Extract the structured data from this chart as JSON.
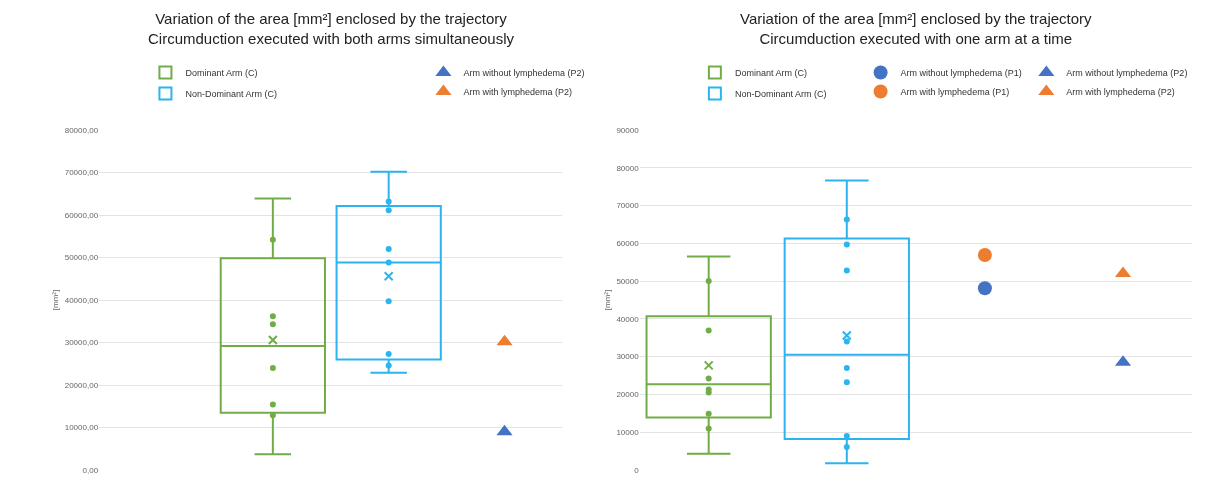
{
  "chart_data": [
    {
      "type": "box",
      "title": "Variation of the area [mm²] enclosed by the trajectory\nCircumduction executed with both arms simultaneously",
      "ylabel": "[mm²]",
      "categories": [
        null,
        null,
        null,
        null
      ],
      "ylim": [
        0,
        80000
      ],
      "yticks": [
        {
          "value": 0,
          "label": "0,00"
        },
        {
          "value": 10000,
          "label": "10000,00"
        },
        {
          "value": 20000,
          "label": "20000,00"
        },
        {
          "value": 30000,
          "label": "30000,00"
        },
        {
          "value": 40000,
          "label": "40000,00"
        },
        {
          "value": 50000,
          "label": "50000,00"
        },
        {
          "value": 60000,
          "label": "60000,00"
        },
        {
          "value": 70000,
          "label": "70000,00"
        },
        {
          "value": 80000,
          "label": "80000,00"
        }
      ],
      "grid": "y",
      "legend": "top",
      "tick_labels": "y",
      "series": [
        {
          "name": "Dominant Arm (C)",
          "color": "#70ad47",
          "boxes": [
            null,
            {
              "low": 3700,
              "q1": 13500,
              "median": 29200,
              "q3": 49800,
              "high": 63900,
              "mean": 30600,
              "outliers": [
                54200,
                36200,
                34300,
                24000,
                15400,
                12900
              ]
            },
            null,
            null
          ]
        },
        {
          "name": "Non-Dominant Arm (C)",
          "color": "#2bb5ee",
          "boxes": [
            null,
            null,
            {
              "low": 22900,
              "q1": 26000,
              "median": 48800,
              "q3": 62100,
              "high": 70200,
              "mean": 45600,
              "outliers": [
                63200,
                61100,
                52000,
                48800,
                39700,
                27300,
                24600
              ]
            },
            null
          ]
        },
        {
          "name": "Arm without lymphedema (P2)",
          "type": "scatter",
          "marker": "triangle",
          "color": "#4472c4",
          "values": [
            null,
            null,
            null,
            9000
          ]
        },
        {
          "name": "Arm with lymphedema (P2)",
          "type": "scatter",
          "marker": "triangle",
          "color": "#ed7d31",
          "values": [
            null,
            null,
            null,
            30200
          ]
        }
      ]
    },
    {
      "type": "box",
      "title": "Variation of the area [mm²] enclosed by the trajectory\nCircumduction executed with one arm at a time",
      "ylabel": "[mm²]",
      "categories": [
        null,
        null,
        null,
        null
      ],
      "ylim": [
        0,
        90000
      ],
      "yticks": [
        0,
        10000,
        20000,
        30000,
        40000,
        50000,
        60000,
        70000,
        80000,
        90000
      ],
      "grid": "y",
      "legend": "top",
      "tick_labels": "y",
      "series": [
        {
          "name": "Dominant Arm (C)",
          "color": "#70ad47",
          "boxes": [
            {
              "low": 4300,
              "q1": 13900,
              "median": 22700,
              "q3": 40700,
              "high": 56500,
              "mean": 27700,
              "outliers": [
                50000,
                36900,
                24200,
                21300,
                20500,
                14900,
                11000
              ]
            },
            null,
            null,
            null
          ]
        },
        {
          "name": "Non-Dominant Arm (C)",
          "color": "#2bb5ee",
          "boxes": [
            null,
            {
              "low": 1800,
              "q1": 8200,
              "median": 30500,
              "q3": 61300,
              "high": 76600,
              "mean": 35600,
              "outliers": [
                66300,
                59700,
                52800,
                34000,
                27000,
                23200,
                9000,
                6100
              ]
            },
            null,
            null
          ]
        },
        {
          "name": "Arm without lymphedema (P1)",
          "type": "scatter",
          "marker": "circle",
          "color": "#4472c4",
          "values": [
            null,
            null,
            48100,
            null
          ]
        },
        {
          "name": "Arm with lymphedema (P1)",
          "type": "scatter",
          "marker": "circle",
          "color": "#ed7d31",
          "values": [
            null,
            null,
            56900,
            null
          ]
        },
        {
          "name": "Arm without lymphedema (P2)",
          "type": "scatter",
          "marker": "triangle",
          "color": "#4472c4",
          "values": [
            null,
            null,
            null,
            28500
          ]
        },
        {
          "name": "Arm with lymphedema (P2)",
          "type": "scatter",
          "marker": "triangle",
          "color": "#ed7d31",
          "values": [
            null,
            null,
            null,
            52000
          ]
        }
      ]
    }
  ]
}
